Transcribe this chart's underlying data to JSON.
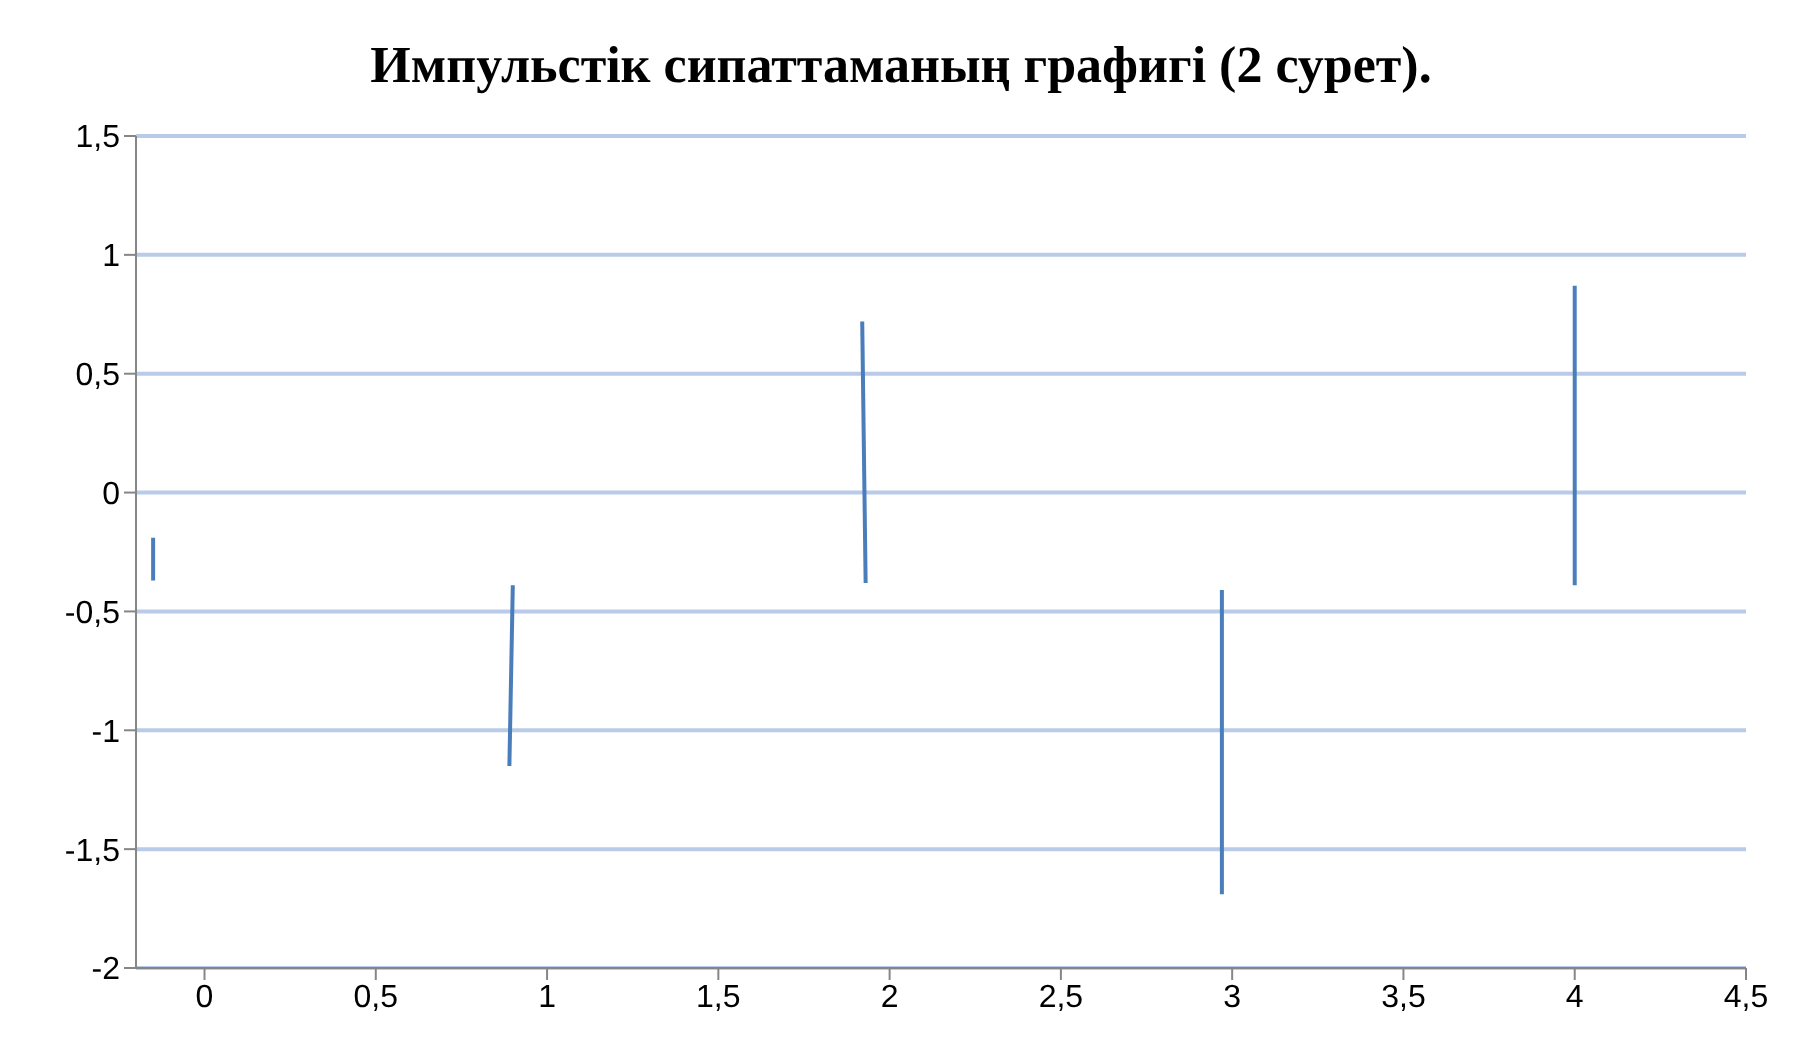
{
  "chart_data": {
    "type": "line",
    "title": "Импульстік сипаттаманың графигі (2 сурет).",
    "series": [
      {
        "color": "#4a7ebb",
        "x": [
          -0.15,
          -0.15
        ],
        "values": [
          -0.19,
          -0.37
        ]
      },
      {
        "color": "#4a7ebb",
        "x": [
          0.9,
          0.89
        ],
        "values": [
          -0.39,
          -1.15
        ]
      },
      {
        "color": "#4a7ebb",
        "x": [
          1.92,
          1.93
        ],
        "values": [
          0.72,
          -0.38
        ]
      },
      {
        "color": "#4a7ebb",
        "x": [
          2.97,
          2.97
        ],
        "values": [
          -0.41,
          -1.69
        ]
      },
      {
        "color": "#4a7ebb",
        "x": [
          4,
          4
        ],
        "values": [
          0.87,
          -0.39
        ]
      }
    ],
    "xlim": [
      -0.2,
      4.5
    ],
    "xticks": [
      0,
      {
        "value": 0.5,
        "label": "0,5"
      },
      1,
      {
        "value": 1.5,
        "label": "1,5"
      },
      2,
      {
        "value": 2.5,
        "label": "2,5"
      },
      3,
      {
        "value": 3.5,
        "label": "3,5"
      },
      4,
      {
        "value": 4.5,
        "label": "4,5"
      }
    ],
    "ylim": [
      -2,
      1.5
    ],
    "yticks": [
      -2,
      {
        "value": -1.5,
        "label": "-1,5"
      },
      -1,
      {
        "value": -0.5,
        "label": "-0,5"
      },
      0,
      {
        "value": 0.5,
        "label": "0,5"
      },
      1,
      {
        "value": 1.5,
        "label": "1,5"
      }
    ],
    "grid": "y",
    "marker": "none",
    "line_style": "solid"
  }
}
